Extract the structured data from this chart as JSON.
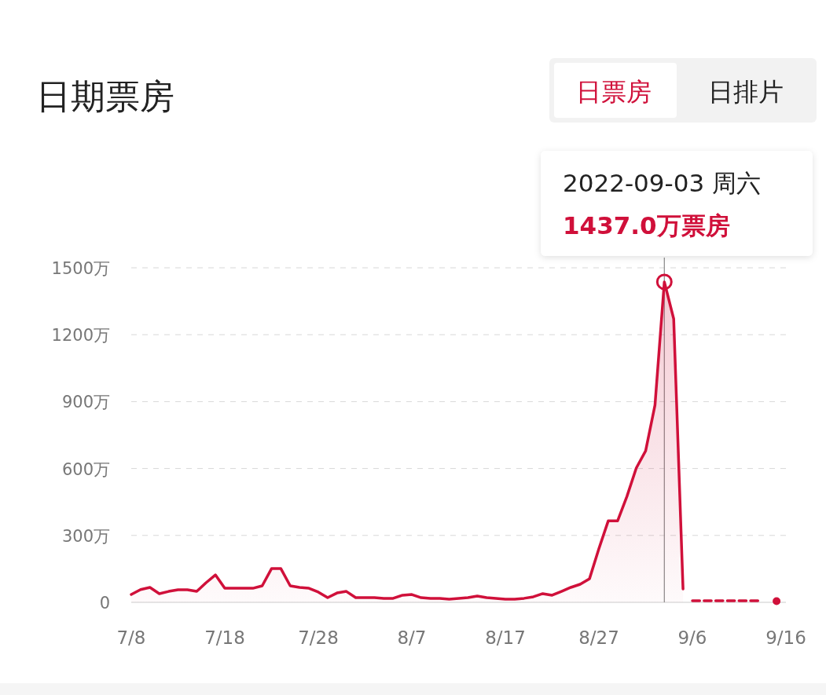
{
  "chart_data": {
    "type": "area",
    "title": "日期票房",
    "annotations": [
      "日票房",
      "日排片",
      {
        "text": "2022-09-03  周六\n1437.0万票房",
        "x": "2022-09-03",
        "y": 1437
      }
    ],
    "xlim": [
      "2022-07-08",
      "2022-09-16"
    ],
    "xticks": [
      {
        "value": "2022-07-08",
        "label": "7/8"
      },
      {
        "value": "2022-07-18",
        "label": "7/18"
      },
      {
        "value": "2022-07-28",
        "label": "7/28"
      },
      {
        "value": "2022-08-07",
        "label": "8/7"
      },
      {
        "value": "2022-08-17",
        "label": "8/17"
      },
      {
        "value": "2022-08-27",
        "label": "8/27"
      },
      {
        "value": "2022-09-06",
        "label": "9/6"
      },
      {
        "value": "2022-09-16",
        "label": "9/16"
      }
    ],
    "ylim": [
      0,
      1500
    ],
    "yticks": [
      {
        "value": 0,
        "label": "0"
      },
      {
        "value": 300,
        "label": "300万"
      },
      {
        "value": 600,
        "label": "600万"
      },
      {
        "value": 900,
        "label": "900万"
      },
      {
        "value": 1200,
        "label": "1200万"
      },
      {
        "value": 1500,
        "label": "1500万"
      }
    ],
    "grid": "y",
    "ref_lines": [
      {
        "axis": "x",
        "value": "2022-09-03",
        "color": "#888888"
      }
    ],
    "series": [
      {
        "color": "#d0103a",
        "line_style": "solid",
        "x": [
          "2022-07-08",
          "2022-07-09",
          "2022-07-10",
          "2022-07-11",
          "2022-07-12",
          "2022-07-13",
          "2022-07-14",
          "2022-07-15",
          "2022-07-16",
          "2022-07-17",
          "2022-07-18",
          "2022-07-19",
          "2022-07-20",
          "2022-07-21",
          "2022-07-22",
          "2022-07-23",
          "2022-07-24",
          "2022-07-25",
          "2022-07-26",
          "2022-07-27",
          "2022-07-28",
          "2022-07-29",
          "2022-07-30",
          "2022-07-31",
          "2022-08-01",
          "2022-08-02",
          "2022-08-03",
          "2022-08-04",
          "2022-08-05",
          "2022-08-06",
          "2022-08-07",
          "2022-08-08",
          "2022-08-09",
          "2022-08-10",
          "2022-08-11",
          "2022-08-12",
          "2022-08-13",
          "2022-08-14",
          "2022-08-15",
          "2022-08-16",
          "2022-08-17",
          "2022-08-18",
          "2022-08-19",
          "2022-08-20",
          "2022-08-21",
          "2022-08-22",
          "2022-08-23",
          "2022-08-24",
          "2022-08-25",
          "2022-08-26",
          "2022-08-27",
          "2022-08-28",
          "2022-08-29",
          "2022-08-30",
          "2022-08-31",
          "2022-09-01",
          "2022-09-02",
          "2022-09-03",
          "2022-09-04",
          "2022-09-05"
        ],
        "values": [
          35,
          57,
          67,
          39,
          49,
          56,
          56,
          49,
          88,
          123,
          63,
          63,
          63,
          63,
          74,
          151,
          151,
          74,
          67,
          63,
          46,
          21,
          42,
          49,
          21,
          21,
          21,
          18,
          18,
          32,
          35,
          21,
          18,
          18,
          14,
          18,
          21,
          28,
          21,
          18,
          14,
          14,
          18,
          25,
          39,
          32,
          49,
          67,
          81,
          106,
          240,
          365,
          365,
          475,
          602,
          679,
          884,
          1437,
          1271,
          60
        ]
      },
      {
        "type": "line",
        "color": "#d0103a",
        "line_style": "dashed",
        "x": [
          "2022-09-06",
          "2022-09-07",
          "2022-09-08",
          "2022-09-09",
          "2022-09-10",
          "2022-09-11",
          "2022-09-12",
          "2022-09-13"
        ],
        "values": [
          7,
          7,
          7,
          7,
          7,
          7,
          7,
          7
        ]
      },
      {
        "type": "scatter",
        "color": "#d0103a",
        "x": [
          "2022-09-15"
        ],
        "values": [
          5
        ]
      }
    ]
  }
}
